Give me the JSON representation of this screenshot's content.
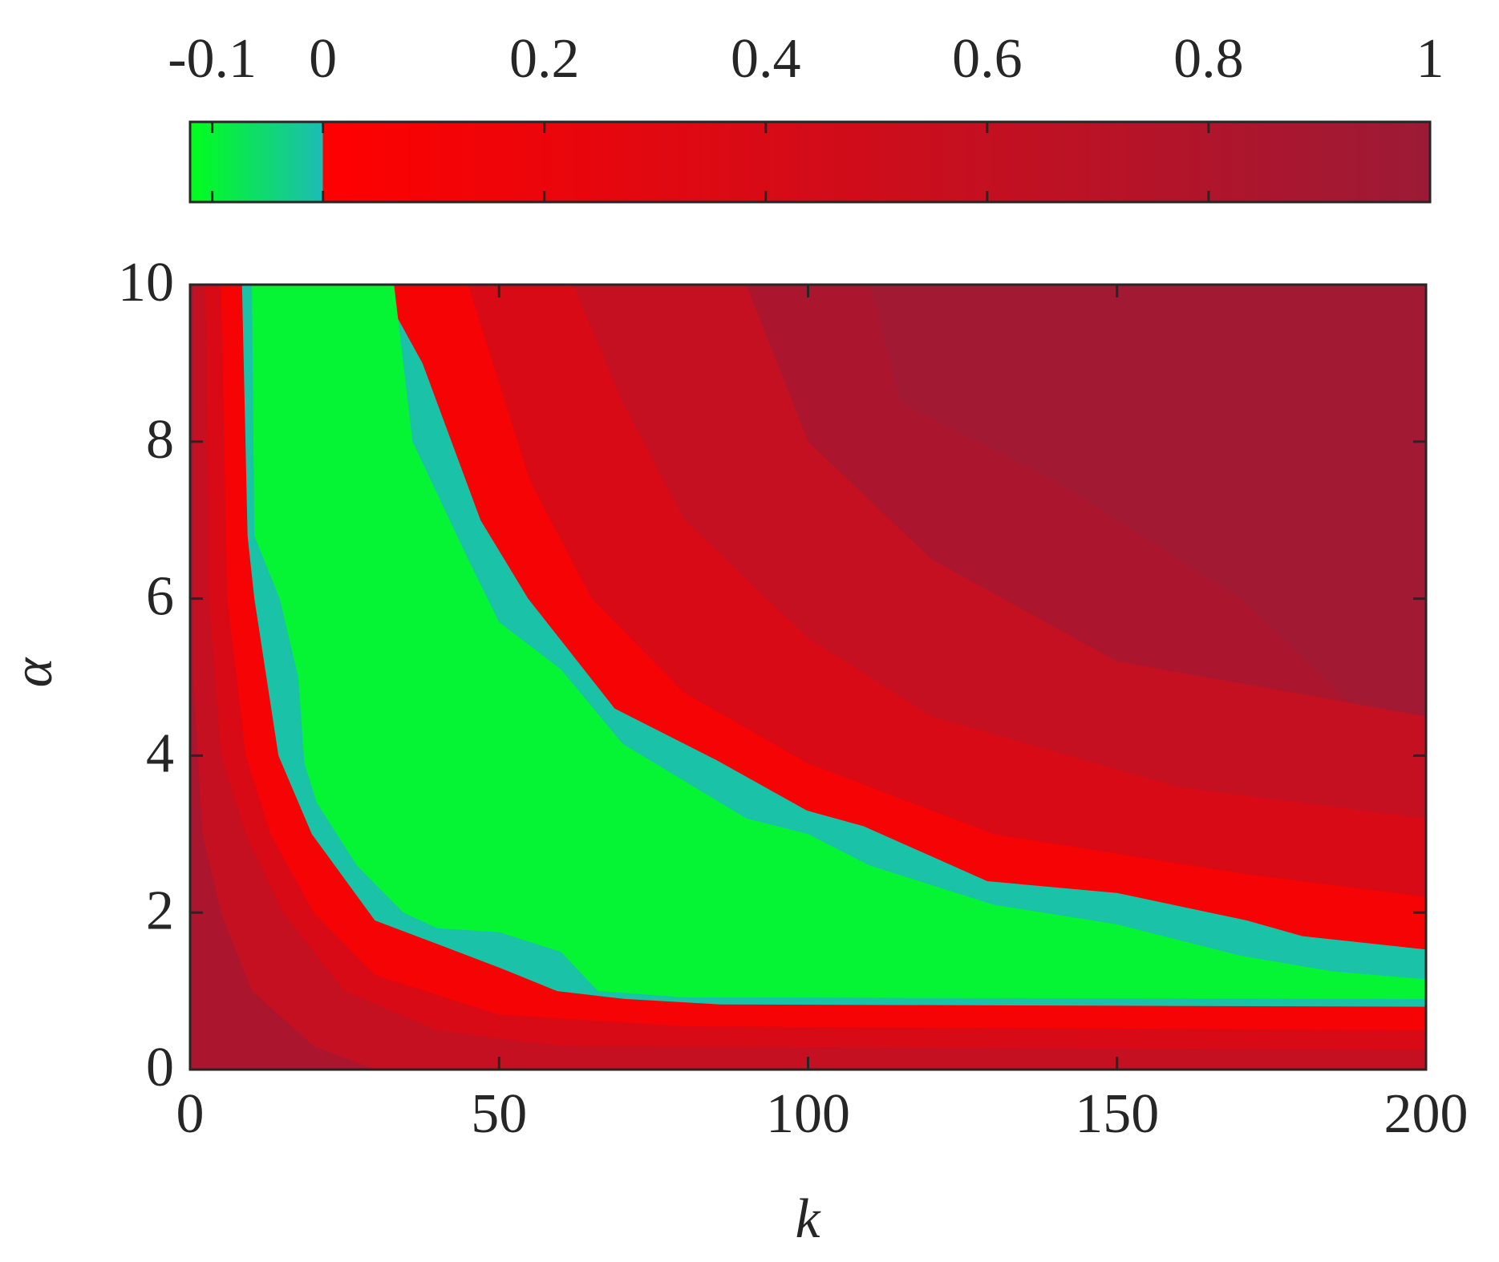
{
  "chart_data": {
    "type": "contour",
    "xlabel": "k",
    "ylabel": "α",
    "xlim": [
      0,
      200
    ],
    "ylim": [
      0,
      10
    ],
    "xticks": [
      0,
      50,
      100,
      150,
      200
    ],
    "yticks": [
      0,
      2,
      4,
      6,
      8,
      10
    ],
    "colorbar": {
      "lim": [
        -0.12,
        1
      ],
      "ticks": [
        -0.1,
        0,
        0.2,
        0.4,
        0.6,
        0.8,
        1
      ],
      "stops": [
        {
          "value": -0.12,
          "color": "#00ff1a"
        },
        {
          "value": 0,
          "color": "#1cbcb4"
        },
        {
          "value": 0,
          "color": "#ff0000"
        },
        {
          "value": 1,
          "color": "#9c1a36"
        }
      ]
    },
    "regions": [
      {
        "level": 0.85,
        "x": [
          0,
          200,
          200,
          0
        ],
        "y": [
          10,
          10,
          0,
          0
        ]
      },
      {
        "level": 0.95,
        "x": [
          110,
          200,
          200,
          190,
          170,
          140,
          115
        ],
        "y": [
          10,
          10,
          4.3,
          4.5,
          6,
          7.5,
          8.5
        ]
      },
      {
        "level": 0.6,
        "x": [
          0.5,
          90,
          100,
          120,
          150,
          200,
          200,
          30,
          20,
          10,
          5,
          2,
          0.5
        ],
        "y": [
          10,
          10,
          8,
          6.5,
          5.2,
          4.5,
          0,
          0,
          0.3,
          1,
          2,
          3,
          5
        ]
      },
      {
        "level": 0.4,
        "x": [
          2.5,
          62,
          70,
          80,
          100,
          120,
          160,
          200,
          200,
          60,
          40,
          25,
          15,
          9,
          5,
          3
        ],
        "y": [
          10,
          10,
          8.5,
          7,
          5.5,
          4.5,
          3.6,
          3.2,
          0.25,
          0.3,
          0.5,
          1,
          2,
          3,
          4,
          6
        ]
      },
      {
        "level": 0.1,
        "x": [
          5,
          45,
          55,
          65,
          80,
          100,
          130,
          170,
          200,
          200,
          80,
          50,
          30,
          20,
          13,
          9,
          6
        ],
        "y": [
          10,
          10,
          7.5,
          6,
          4.8,
          3.9,
          3,
          2.5,
          2.2,
          0.5,
          0.55,
          0.7,
          1.2,
          2,
          3,
          4,
          6
        ]
      },
      {
        "level": -0.01,
        "x": [
          8.4,
          30.6,
          37.6,
          47,
          54.7,
          68.7,
          85,
          99.8,
          109,
          129,
          150,
          171,
          180,
          200,
          200,
          85.8,
          70.3,
          59.4,
          50,
          40,
          29.9,
          19.7,
          14.3,
          10.4,
          9.3
        ],
        "y": [
          10,
          10,
          9,
          7,
          6,
          4.6,
          3.95,
          3.3,
          3.1,
          2.4,
          2.25,
          1.9,
          1.7,
          1.53,
          0.8,
          0.83,
          0.9,
          1,
          1.3,
          1.6,
          1.9,
          3,
          4,
          6,
          6.8
        ]
      },
      {
        "level": -0.1,
        "x": [
          10,
          33,
          36,
          45,
          50,
          60,
          70,
          90,
          100,
          110,
          130,
          150,
          170,
          185,
          200,
          200,
          80,
          66,
          60,
          50,
          40,
          34.5,
          27,
          20.5,
          18.5,
          17.5,
          14.5,
          10.4
        ],
        "y": [
          10,
          10,
          8,
          6.5,
          5.7,
          5.1,
          4.15,
          3.2,
          3,
          2.6,
          2.1,
          1.85,
          1.45,
          1.25,
          1.15,
          0.9,
          0.92,
          1,
          1.5,
          1.75,
          1.8,
          2,
          2.6,
          3.4,
          3.9,
          5,
          6,
          6.8
        ]
      }
    ]
  }
}
